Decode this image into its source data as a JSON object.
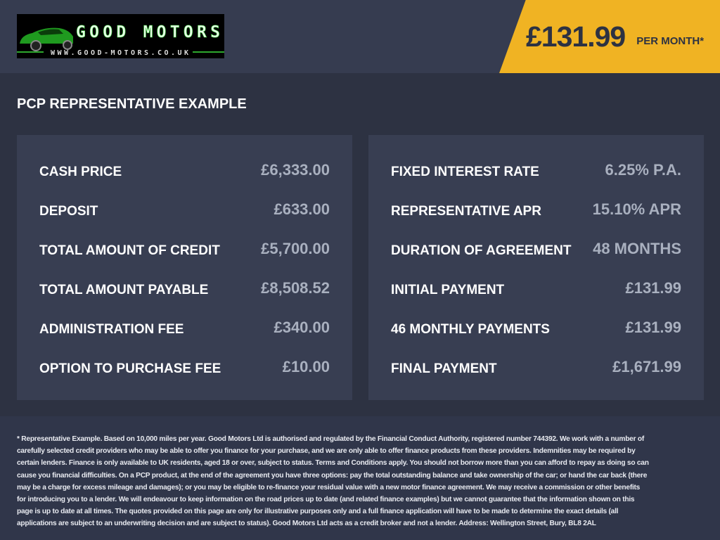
{
  "header": {
    "logo": {
      "name": "GOOD MOTORS",
      "url": "WWW.GOOD-MOTORS.CO.UK"
    },
    "price": "£131.99",
    "price_suffix": "PER MONTH*",
    "accent": "#f0b323"
  },
  "title": "PCP REPRESENTATIVE EXAMPLE",
  "left": [
    {
      "label": "CASH PRICE",
      "value": "£6,333.00"
    },
    {
      "label": "DEPOSIT",
      "value": "£633.00"
    },
    {
      "label": "TOTAL AMOUNT OF CREDIT",
      "value": "£5,700.00"
    },
    {
      "label": "TOTAL AMOUNT PAYABLE",
      "value": "£8,508.52"
    },
    {
      "label": "ADMINISTRATION FEE",
      "value": "£340.00"
    },
    {
      "label": "OPTION TO PURCHASE FEE",
      "value": "£10.00"
    }
  ],
  "right": [
    {
      "label": "FIXED INTEREST RATE",
      "value": "6.25% P.A."
    },
    {
      "label": "REPRESENTATIVE APR",
      "value": "15.10% APR"
    },
    {
      "label": "DURATION OF AGREEMENT",
      "value": "48 MONTHS"
    },
    {
      "label": "INITIAL PAYMENT",
      "value": "£131.99"
    },
    {
      "label": "46 MONTHLY PAYMENTS",
      "value": "£131.99"
    },
    {
      "label": "FINAL PAYMENT",
      "value": "£1,671.99"
    }
  ],
  "disclaimer": "* Representative Example. Based on 10,000 miles per year. Good Motors Ltd is authorised and regulated by the Financial Conduct Authority, registered number 744392. We work with a number of carefully selected credit providers who may be able to offer you finance for your purchase, and we are only able to offer finance products from these providers. Indemnities may be required by certain lenders. Finance is only available to UK residents, aged 18 or over, subject to status. Terms and Conditions apply. You should not borrow more than you can afford to repay as doing so can cause you financial difficulties. On a PCP product, at the end of the agreement you have three options: pay the total outstanding balance and take ownership of the car; or hand the car back (there may be a charge for excess mileage and damages); or you may be eligible to re-finance your residual value with a new motor finance agreement. We may receive a commission or other benefits for introducing you to a lender. We will endeavour to keep information on the road prices up to date (and related finance examples) but we cannot guarantee that the information shown on this page is up to date at all times. The quotes provided on this page are only for illustrative purposes only and a full finance application will have to be made to determine the exact details (all applications are subject to an underwriting decision and are subject to status). Good Motors Ltd acts as a credit broker and not a lender. Address: Wellington Street, Bury, BL8 2AL"
}
